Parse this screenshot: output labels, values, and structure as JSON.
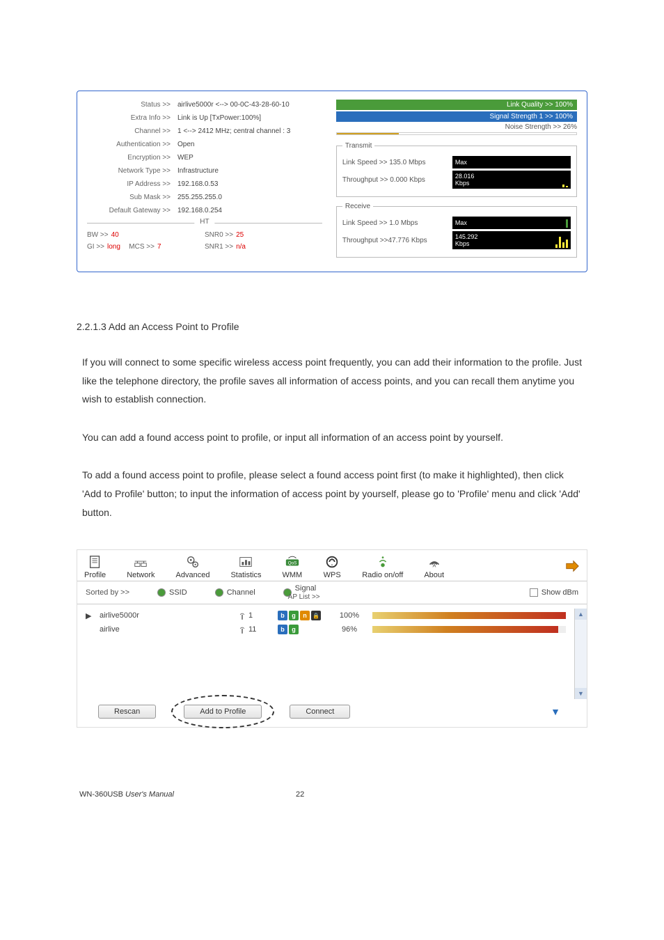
{
  "status_panel": {
    "info": {
      "status_label": "Status >>",
      "status_val": "airlive5000r <--> 00-0C-43-28-60-10",
      "extra_label": "Extra Info >>",
      "extra_val": "Link is Up [TxPower:100%]",
      "channel_label": "Channel >>",
      "channel_val": "1 <--> 2412 MHz; central channel : 3",
      "auth_label": "Authentication >>",
      "auth_val": "Open",
      "enc_label": "Encryption >>",
      "enc_val": "WEP",
      "nettype_label": "Network Type >>",
      "nettype_val": "Infrastructure",
      "ip_label": "IP Address >>",
      "ip_val": "192.168.0.53",
      "mask_label": "Sub Mask >>",
      "mask_val": "255.255.255.0",
      "gw_label": "Default Gateway >>",
      "gw_val": "192.168.0.254"
    },
    "ht": {
      "divider": "HT",
      "bw_label": "BW >>",
      "bw_val": "40",
      "snr0_label": "SNR0 >>",
      "snr0_val": "25",
      "gi_label": "GI >>",
      "gi_val": "long",
      "mcs_label": "MCS >>",
      "mcs_val": "7",
      "snr1_label": "SNR1 >>",
      "snr1_val": "n/a"
    },
    "quality": {
      "link_quality": "Link Quality >> 100%",
      "signal_strength": "Signal Strength 1 >> 100%",
      "noise_label": "Noise Strength >> 26%",
      "noise_pct": 26
    },
    "transmit": {
      "legend": "Transmit",
      "linkspeed_label": "Link Speed >>",
      "linkspeed_val": "135.0 Mbps",
      "throughput_label": "Throughput >>",
      "throughput_val": "0.000 Kbps",
      "max_label": "Max",
      "max_val": "28.016",
      "unit": "Kbps"
    },
    "receive": {
      "legend": "Receive",
      "linkspeed_label": "Link Speed >>",
      "linkspeed_val": "1.0 Mbps",
      "throughput_label": "Throughput >>",
      "throughput_val": "47.776 Kbps",
      "max_label": "Max",
      "max_val": "145.292",
      "unit": "Kbps"
    }
  },
  "doc": {
    "heading": "2.2.1.3 Add an Access Point to Profile",
    "p1": "If you will connect to some specific wireless access point frequently, you can add their information to the profile. Just like the telephone directory, the profile saves all information of access points, and you can recall them anytime you wish to establish connection.",
    "p2": "You can add a found access point to profile, or input all information of an access point by yourself.",
    "p3": "To add a found access point to profile, please select a found access point first (to make it highlighted), then click 'Add to Profile' button; to input the information of access point by yourself, please go to 'Profile' menu and click 'Add' button."
  },
  "net_panel": {
    "toolbar": {
      "profile": "Profile",
      "network": "Network",
      "advanced": "Advanced",
      "statistics": "Statistics",
      "wmm": "WMM",
      "wps": "WPS",
      "radio": "Radio on/off",
      "about": "About"
    },
    "sort": {
      "label": "Sorted by >>",
      "ssid": "SSID",
      "channel": "Channel",
      "signal": "Signal",
      "showdbm": "Show dBm",
      "aplist": "AP List >>"
    },
    "rows": [
      {
        "ssid": "airlive5000r",
        "channel": "1",
        "modes": [
          "b",
          "g",
          "n",
          "lock"
        ],
        "pct": "100%",
        "strength_pct": 100,
        "selected": true
      },
      {
        "ssid": "airlive",
        "channel": "11",
        "modes": [
          "b",
          "g"
        ],
        "pct": "96%",
        "strength_pct": 96,
        "selected": false
      }
    ],
    "buttons": {
      "rescan": "Rescan",
      "add_to_profile": "Add to Profile",
      "connect": "Connect"
    }
  },
  "footer": {
    "title_prefix": "WN-360USB ",
    "title_em": "User's Manual",
    "page": "22"
  },
  "colors": {
    "bar_green": "#4a9b3a",
    "bar_blue": "#2a6ebc",
    "chart_bg": "#000000",
    "chart_bar": "#ffeb3b"
  }
}
